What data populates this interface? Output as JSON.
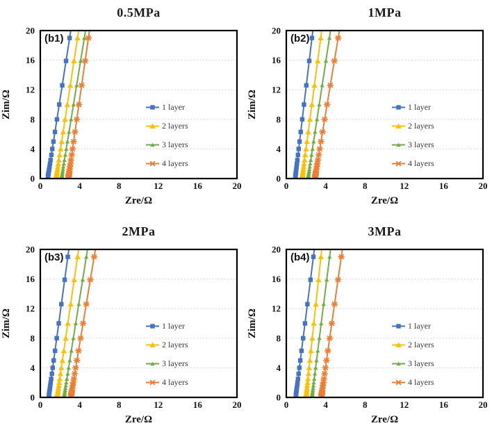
{
  "figure": {
    "background": "#ffffff"
  },
  "colors": {
    "grid": "#cccccc",
    "axis_border": "#000000",
    "series_blue": "#4472C4",
    "series_yellow": "#FFC000",
    "series_green": "#70AD47",
    "series_orange": "#ED7D31"
  },
  "legend": {
    "entries": [
      {
        "label": "1 layer",
        "color": "#4472C4",
        "marker": "square"
      },
      {
        "label": "2 layers",
        "color": "#FFC000",
        "marker": "triangle"
      },
      {
        "label": "3 layers",
        "color": "#70AD47",
        "marker": "triangle-small"
      },
      {
        "label": "4 layers",
        "color": "#ED7D31",
        "marker": "asterisk"
      }
    ]
  },
  "marker_zim_values": [
    0.25,
    0.32,
    0.4,
    0.5,
    0.63,
    0.8,
    1.0,
    1.26,
    1.6,
    2.0,
    2.5,
    3.2,
    4.0,
    5.0,
    6.3,
    8.0,
    10.0,
    12.6,
    15.9,
    19.0
  ],
  "chart_data": [
    {
      "type": "line",
      "panel_label": "(b1)",
      "title": "0.5MPa",
      "xlabel": "Zre/Ω",
      "ylabel": "Zim/Ω",
      "xlim": [
        0,
        20
      ],
      "ylim": [
        0,
        20
      ],
      "xticks": [
        0,
        4,
        8,
        12,
        16,
        20
      ],
      "yticks": [
        0,
        4,
        8,
        12,
        16,
        20
      ],
      "grid": "horizontal dotted",
      "legend_position": "center-right",
      "series": [
        {
          "name": "1 layer",
          "color": "#4472C4",
          "marker": "square",
          "zre_at_zim_0": 0.75,
          "zre_at_zim_20": 3.1
        },
        {
          "name": "2 layers",
          "color": "#FFC000",
          "marker": "triangle",
          "zre_at_zim_0": 1.6,
          "zre_at_zim_20": 3.9
        },
        {
          "name": "3 layers",
          "color": "#70AD47",
          "marker": "triangle-small",
          "zre_at_zim_0": 2.15,
          "zre_at_zim_20": 4.6
        },
        {
          "name": "4 layers",
          "color": "#ED7D31",
          "marker": "asterisk",
          "zre_at_zim_0": 2.85,
          "zre_at_zim_20": 5.0
        }
      ]
    },
    {
      "type": "line",
      "panel_label": "(b2)",
      "title": "1MPa",
      "xlabel": "Zre/Ω",
      "ylabel": "Zim/Ω",
      "xlim": [
        0,
        20
      ],
      "ylim": [
        0,
        20
      ],
      "xticks": [
        0,
        4,
        8,
        12,
        16,
        20
      ],
      "yticks": [
        0,
        4,
        8,
        12,
        16,
        20
      ],
      "grid": "horizontal dotted",
      "legend_position": "center-right",
      "series": [
        {
          "name": "1 layer",
          "color": "#4472C4",
          "marker": "square",
          "zre_at_zim_0": 0.9,
          "zre_at_zim_20": 2.7
        },
        {
          "name": "2 layers",
          "color": "#FFC000",
          "marker": "triangle",
          "zre_at_zim_0": 1.6,
          "zre_at_zim_20": 3.6
        },
        {
          "name": "3 layers",
          "color": "#70AD47",
          "marker": "triangle-small",
          "zre_at_zim_0": 2.2,
          "zre_at_zim_20": 4.5
        },
        {
          "name": "4 layers",
          "color": "#ED7D31",
          "marker": "asterisk",
          "zre_at_zim_0": 2.9,
          "zre_at_zim_20": 5.4
        }
      ]
    },
    {
      "type": "line",
      "panel_label": "(b3)",
      "title": "2MPa",
      "xlabel": "Zre/Ω",
      "ylabel": "Zim/Ω",
      "xlim": [
        0,
        20
      ],
      "ylim": [
        0,
        20
      ],
      "xticks": [
        0,
        4,
        8,
        12,
        16,
        20
      ],
      "yticks": [
        0,
        4,
        8,
        12,
        16,
        20
      ],
      "grid": "horizontal dotted",
      "legend_position": "center-right",
      "series": [
        {
          "name": "1 layer",
          "color": "#4472C4",
          "marker": "square",
          "zre_at_zim_0": 0.85,
          "zre_at_zim_20": 2.9
        },
        {
          "name": "2 layers",
          "color": "#FFC000",
          "marker": "triangle",
          "zre_at_zim_0": 1.7,
          "zre_at_zim_20": 3.9
        },
        {
          "name": "3 layers",
          "color": "#70AD47",
          "marker": "triangle-small",
          "zre_at_zim_0": 2.4,
          "zre_at_zim_20": 4.8
        },
        {
          "name": "4 layers",
          "color": "#ED7D31",
          "marker": "asterisk",
          "zre_at_zim_0": 3.1,
          "zre_at_zim_20": 5.6
        }
      ]
    },
    {
      "type": "line",
      "panel_label": "(b4)",
      "title": "3MPa",
      "xlabel": "Zre/Ω",
      "ylabel": "Zim/Ω",
      "xlim": [
        0,
        20
      ],
      "ylim": [
        0,
        20
      ],
      "xticks": [
        0,
        4,
        8,
        12,
        16,
        20
      ],
      "yticks": [
        0,
        4,
        8,
        12,
        16,
        20
      ],
      "grid": "horizontal dotted",
      "legend_position": "center-right",
      "series": [
        {
          "name": "1 layer",
          "color": "#4472C4",
          "marker": "square",
          "zre_at_zim_0": 0.95,
          "zre_at_zim_20": 2.85
        },
        {
          "name": "2 layers",
          "color": "#FFC000",
          "marker": "triangle",
          "zre_at_zim_0": 2.0,
          "zre_at_zim_20": 3.6
        },
        {
          "name": "3 layers",
          "color": "#70AD47",
          "marker": "triangle-small",
          "zre_at_zim_0": 2.6,
          "zre_at_zim_20": 4.5
        },
        {
          "name": "4 layers",
          "color": "#ED7D31",
          "marker": "asterisk",
          "zre_at_zim_0": 3.55,
          "zre_at_zim_20": 5.7
        }
      ]
    }
  ]
}
